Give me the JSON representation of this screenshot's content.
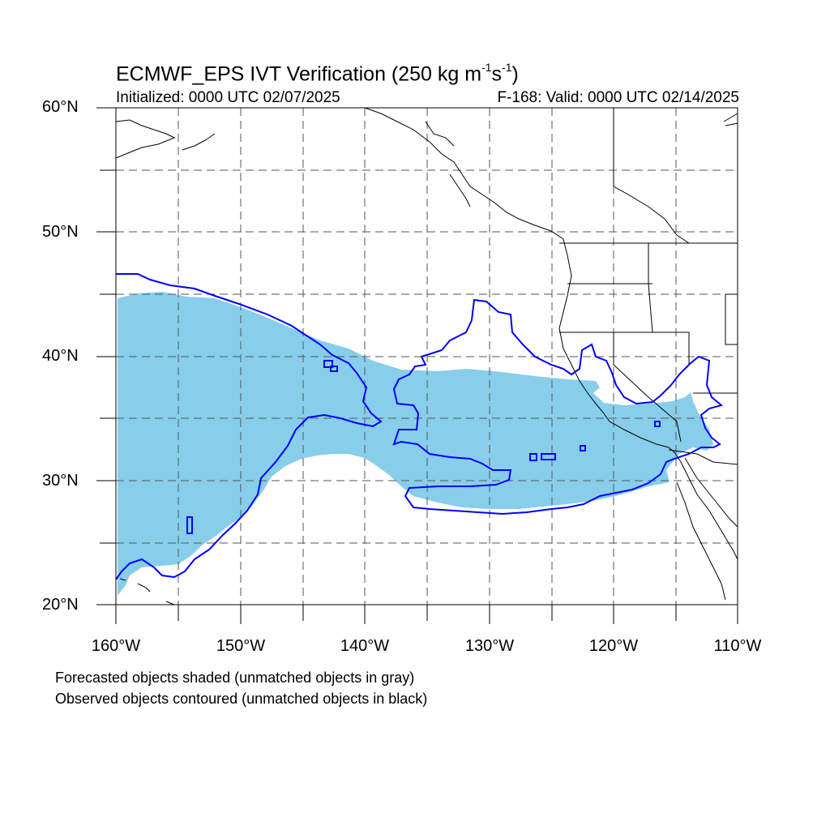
{
  "title": {
    "main": "ECMWF_EPS IVT Verification (250 kg m",
    "unit_exp1": "-1",
    "unit_mid": "s",
    "unit_exp2": "-1",
    "unit_close": ")"
  },
  "subtitle_left": "Initialized: 0000 UTC 02/07/2025",
  "subtitle_right": "F-168: Valid: 0000 UTC 02/14/2025",
  "lat_labels": [
    "60°N",
    "50°N",
    "40°N",
    "30°N",
    "20°N"
  ],
  "lon_labels": [
    "160°W",
    "150°W",
    "140°W",
    "130°W",
    "120°W",
    "110°W"
  ],
  "legend": {
    "line1": "Forecasted objects shaded (unmatched objects in gray)",
    "line2": "Observed objects contoured (unmatched objects in black)"
  },
  "colors": {
    "forecast_fill": "#87CEEB",
    "observed_contour": "#0000FF",
    "coastline": "#000000",
    "grid": "#555555"
  },
  "map_extent": {
    "lon": [
      -160,
      -110
    ],
    "lat": [
      20,
      60
    ]
  }
}
